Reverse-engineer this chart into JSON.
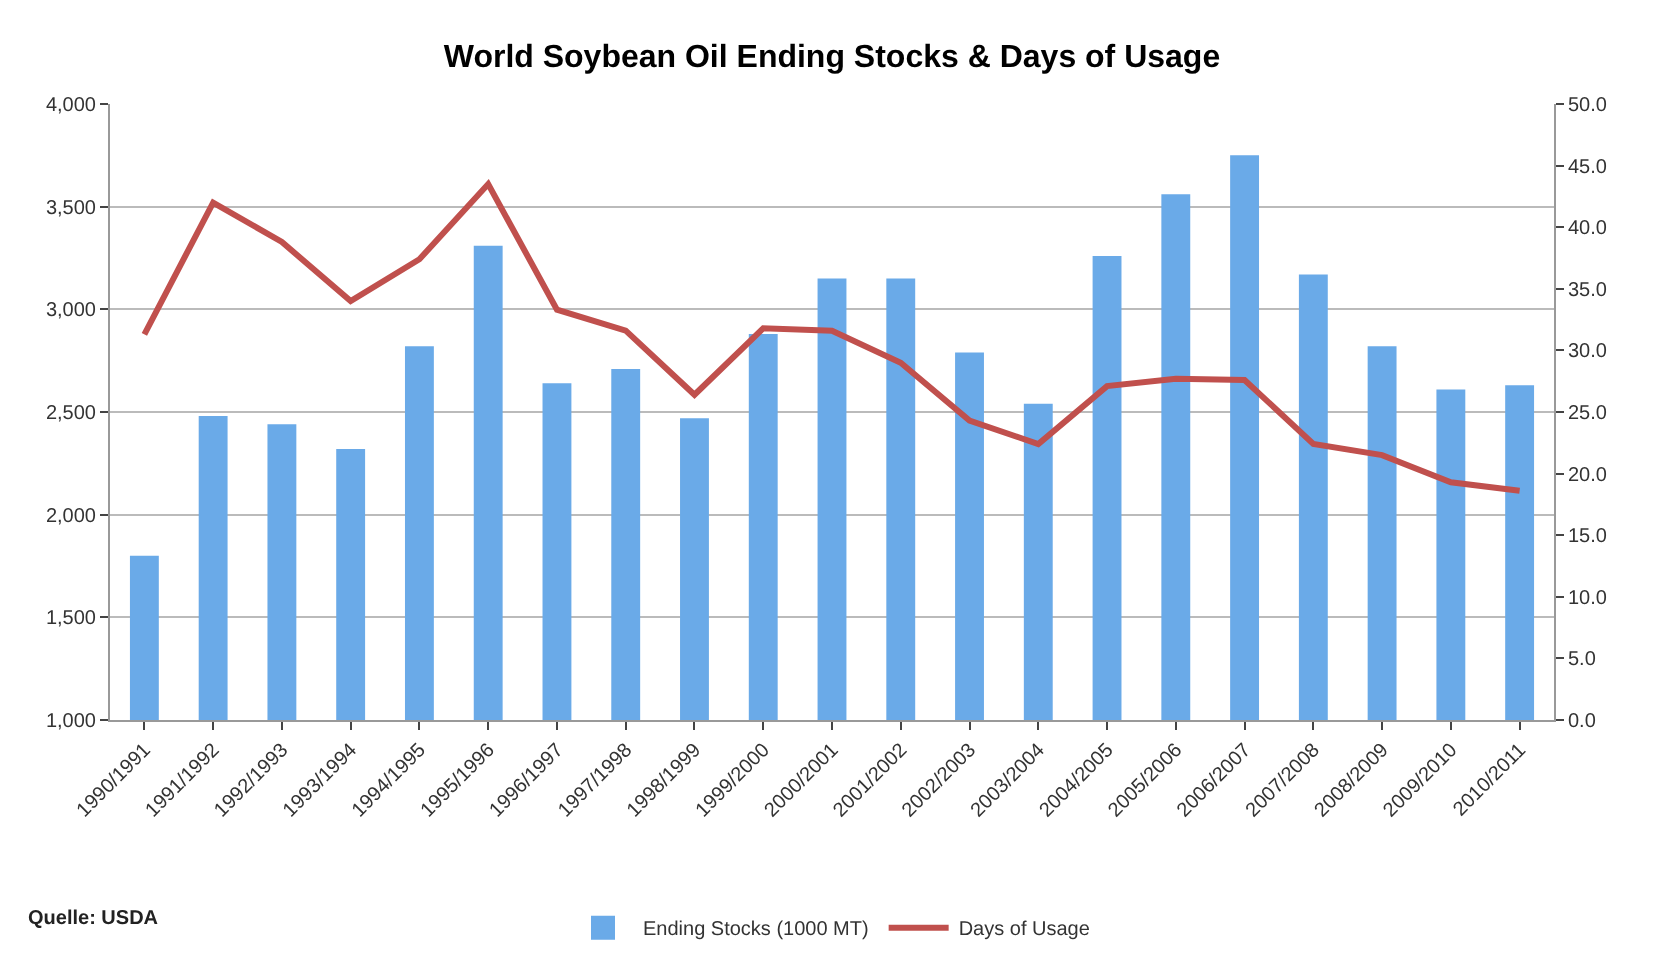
{
  "chart_data": {
    "type": "bar",
    "title": "World Soybean Oil Ending Stocks & Days of Usage",
    "categories": [
      "1990/1991",
      "1991/1992",
      "1992/1993",
      "1993/1994",
      "1994/1995",
      "1995/1996",
      "1996/1997",
      "1997/1998",
      "1998/1999",
      "1999/2000",
      "2000/2001",
      "2001/2002",
      "2002/2003",
      "2003/2004",
      "2004/2005",
      "2005/2006",
      "2006/2007",
      "2007/2008",
      "2008/2009",
      "2009/2010",
      "2010/2011"
    ],
    "series": [
      {
        "name": "Ending Stocks (1000 MT)",
        "color": "#6aaae8",
        "values": [
          1800,
          2480,
          2440,
          2320,
          2820,
          3310,
          2640,
          2710,
          2470,
          2880,
          3150,
          3150,
          2790,
          2540,
          3260,
          3560,
          3750,
          3170,
          2820,
          2610,
          2630
        ]
      },
      {
        "name": "Days of Usage",
        "type": "line",
        "axis": "y2",
        "color": "#c0504d",
        "values": [
          31.3,
          42.0,
          38.8,
          34.0,
          37.4,
          43.5,
          33.3,
          31.6,
          26.4,
          31.8,
          31.6,
          29.0,
          24.3,
          22.4,
          27.1,
          27.7,
          27.6,
          22.4,
          21.5,
          19.3,
          18.6
        ]
      }
    ],
    "ylim": [
      1000,
      4000
    ],
    "yticks": [
      {
        "value": 1000,
        "label": "1,000"
      },
      {
        "value": 1500,
        "label": "1,500"
      },
      {
        "value": 2000,
        "label": "2,000"
      },
      {
        "value": 2500,
        "label": "2,500"
      },
      {
        "value": 3000,
        "label": "3,000"
      },
      {
        "value": 3500,
        "label": "3,500"
      },
      {
        "value": 4000,
        "label": "4,000"
      }
    ],
    "y2lim": [
      0,
      50
    ],
    "y2ticks": [
      {
        "value": 0,
        "label": "0.0"
      },
      {
        "value": 5,
        "label": "5.0"
      },
      {
        "value": 10,
        "label": "10.0"
      },
      {
        "value": 15,
        "label": "15.0"
      },
      {
        "value": 20,
        "label": "20.0"
      },
      {
        "value": 25,
        "label": "25.0"
      },
      {
        "value": 30,
        "label": "30.0"
      },
      {
        "value": 35,
        "label": "35.0"
      },
      {
        "value": 40,
        "label": "40.0"
      },
      {
        "value": 45,
        "label": "45.0"
      },
      {
        "value": 50,
        "label": "50.0"
      }
    ],
    "grid": "y",
    "legend": "bottom",
    "marker": "none",
    "line_style": "solid",
    "annotations": [
      "Quelle: USDA"
    ]
  }
}
